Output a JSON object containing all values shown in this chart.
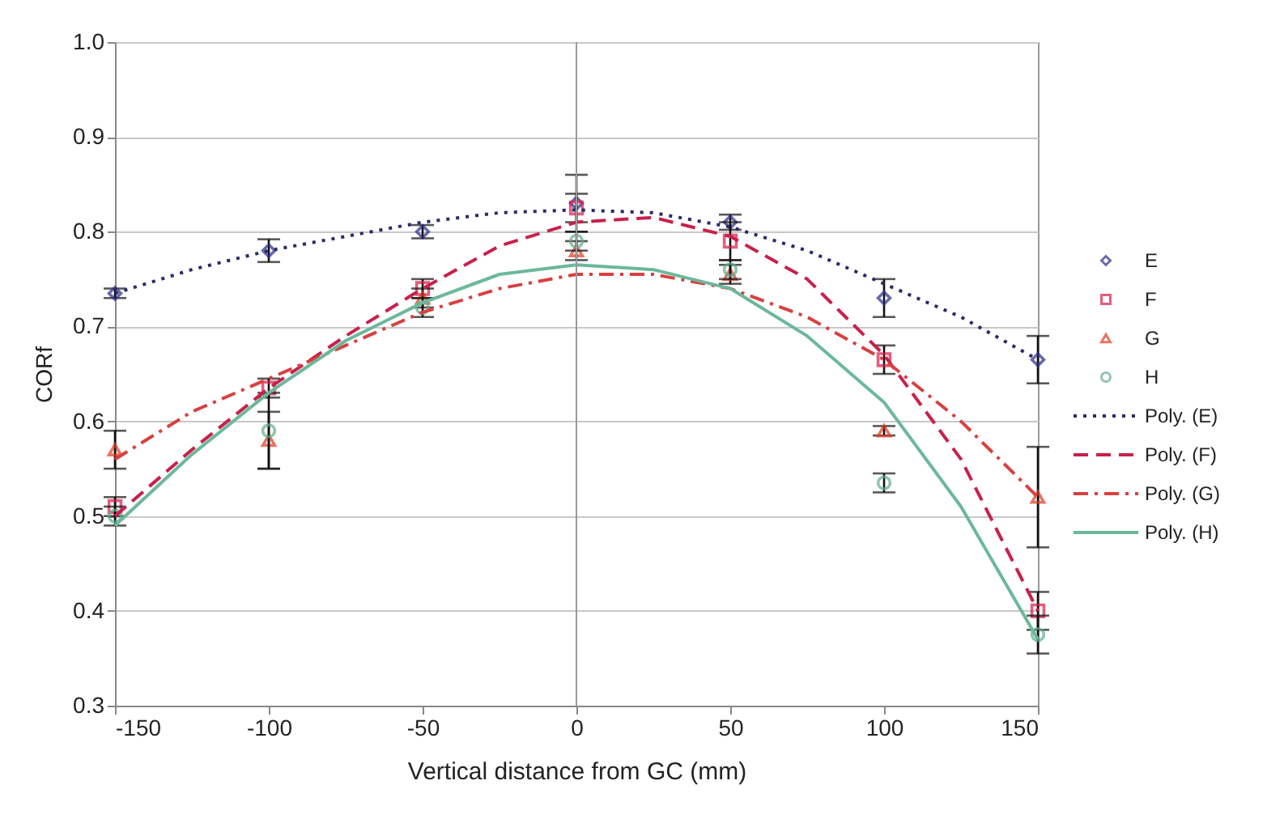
{
  "chart_data": {
    "type": "scatter",
    "xlabel": "Vertical distance from GC (mm)",
    "ylabel": "CORf",
    "x": [
      -150,
      -100,
      -50,
      0,
      50,
      100,
      150
    ],
    "xlim": [
      -150,
      150
    ],
    "xticks": [
      -150,
      -100,
      -50,
      0,
      50,
      100,
      150
    ],
    "ylim": [
      0.3,
      1.0
    ],
    "yticks": [
      {
        "value": 0.3,
        "label": "0.3"
      },
      {
        "value": 0.4,
        "label": "0.4"
      },
      {
        "value": 0.5,
        "label": "0.5"
      },
      {
        "value": 0.6,
        "label": "0.6"
      },
      {
        "value": 0.7,
        "label": "0.7"
      },
      {
        "value": 0.8,
        "label": "0.8"
      },
      {
        "value": 0.9,
        "label": "0.9"
      },
      {
        "value": 1.0,
        "label": "1.0"
      }
    ],
    "grid": "y",
    "legend": "right",
    "ref_lines": [
      {
        "axis": "x",
        "value": 0,
        "color": "#9a9a9a"
      }
    ],
    "series": [
      {
        "name": "E",
        "marker": "diamond",
        "color": "#2b2b8c",
        "values": [
          0.735,
          0.78,
          0.8,
          0.83,
          0.81,
          0.73,
          0.665
        ],
        "errors": [
          0.005,
          0.012,
          0.007,
          0.03,
          0.008,
          0.02,
          0.025
        ]
      },
      {
        "name": "F",
        "marker": "square",
        "color": "#d81b4a",
        "values": [
          0.51,
          0.635,
          0.74,
          0.825,
          0.79,
          0.665,
          0.4
        ],
        "errors": [
          0.01,
          0.01,
          0.01,
          0.015,
          0.02,
          0.015,
          0.02
        ]
      },
      {
        "name": "G",
        "marker": "triangle",
        "color": "#e03a20",
        "values": [
          0.57,
          0.58,
          0.73,
          0.78,
          0.755,
          0.59,
          0.52
        ],
        "errors": [
          0.02,
          0.03,
          0.01,
          0.01,
          0.01,
          0.005,
          0.053
        ]
      },
      {
        "name": "H",
        "marker": "circle",
        "color": "#5fae8c",
        "values": [
          0.5,
          0.59,
          0.72,
          0.79,
          0.76,
          0.535,
          0.375
        ],
        "errors": [
          0.01,
          0.04,
          0.01,
          0.01,
          0.01,
          0.01,
          0.02
        ]
      },
      {
        "name": "Poly. (E)",
        "type": "line",
        "line_style": "dotted",
        "color": "#2a2a6a",
        "x": [
          -150,
          -125,
          -100,
          -75,
          -50,
          -25,
          0,
          25,
          50,
          75,
          100,
          125,
          150
        ],
        "values": [
          0.735,
          0.76,
          0.78,
          0.795,
          0.81,
          0.82,
          0.823,
          0.82,
          0.805,
          0.78,
          0.745,
          0.71,
          0.665
        ]
      },
      {
        "name": "Poly. (F)",
        "type": "line",
        "line_style": "dashed",
        "color": "#c8204c",
        "x": [
          -150,
          -125,
          -100,
          -75,
          -50,
          -25,
          0,
          25,
          50,
          75,
          100,
          125,
          150
        ],
        "values": [
          0.5,
          0.57,
          0.635,
          0.69,
          0.74,
          0.785,
          0.81,
          0.815,
          0.795,
          0.75,
          0.67,
          0.56,
          0.4
        ]
      },
      {
        "name": "Poly. (G)",
        "type": "line",
        "line_style": "dashdot",
        "color": "#d84040",
        "x": [
          -150,
          -125,
          -100,
          -75,
          -50,
          -25,
          0,
          25,
          50,
          75,
          100,
          125,
          150
        ],
        "values": [
          0.56,
          0.61,
          0.645,
          0.68,
          0.715,
          0.74,
          0.755,
          0.755,
          0.74,
          0.71,
          0.665,
          0.6,
          0.52
        ]
      },
      {
        "name": "Poly. (H)",
        "type": "line",
        "line_style": "solid",
        "color": "#6cb89a",
        "x": [
          -150,
          -125,
          -100,
          -75,
          -50,
          -25,
          0,
          25,
          50,
          75,
          100,
          125,
          150
        ],
        "values": [
          0.49,
          0.565,
          0.63,
          0.685,
          0.725,
          0.755,
          0.765,
          0.76,
          0.74,
          0.69,
          0.62,
          0.51,
          0.37
        ]
      }
    ]
  }
}
